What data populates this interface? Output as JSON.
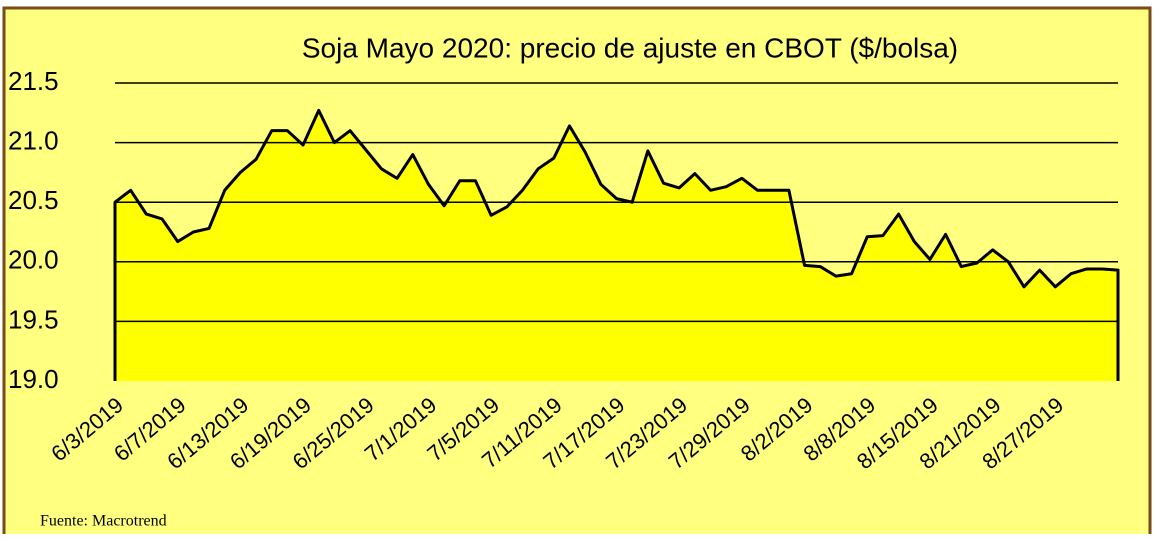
{
  "chart_data": {
    "type": "area",
    "title": "Soja Mayo 2020: precio de ajuste en CBOT ($/bolsa)",
    "source": "Fuente: Macrotrend",
    "color": "#ffff00",
    "line_color": "#000000",
    "background": "#ffff80",
    "grid": true,
    "categories": [
      "6/3/2019",
      null,
      null,
      null,
      "6/7/2019",
      null,
      null,
      null,
      "6/13/2019",
      null,
      null,
      null,
      "6/19/2019",
      null,
      null,
      null,
      "6/25/2019",
      null,
      null,
      null,
      "7/1/2019",
      null,
      null,
      null,
      "7/5/2019",
      null,
      null,
      null,
      "7/11/2019",
      null,
      null,
      null,
      "7/17/2019",
      null,
      null,
      null,
      "7/23/2019",
      null,
      null,
      null,
      "7/29/2019",
      null,
      null,
      null,
      "8/2/2019",
      null,
      null,
      null,
      "8/8/2019",
      null,
      null,
      null,
      "8/15/2019",
      null,
      null,
      null,
      "8/21/2019",
      null,
      null,
      null,
      "8/27/2019",
      null,
      null,
      null,
      null
    ],
    "values": [
      20.5,
      20.6,
      20.4,
      20.36,
      20.17,
      20.25,
      20.28,
      20.6,
      20.75,
      20.86,
      21.1,
      21.1,
      20.98,
      21.27,
      21.0,
      21.1,
      20.94,
      20.78,
      20.7,
      20.9,
      20.65,
      20.47,
      20.68,
      20.68,
      20.39,
      20.46,
      20.6,
      20.78,
      20.87,
      21.14,
      20.92,
      20.65,
      20.53,
      20.5,
      20.93,
      20.66,
      20.62,
      20.74,
      20.6,
      20.63,
      20.7,
      20.6,
      20.6,
      20.6,
      19.97,
      19.96,
      19.88,
      19.9,
      20.21,
      20.22,
      20.4,
      20.17,
      20.02,
      20.23,
      19.96,
      19.99,
      20.1,
      20.0,
      19.79,
      19.93,
      19.79,
      19.9,
      19.94,
      19.94,
      19.93
    ],
    "ylim": [
      19.0,
      21.5
    ],
    "yticks": [
      {
        "value": 19,
        "label": "19.0"
      },
      19.5,
      {
        "value": 20,
        "label": "20.0"
      },
      20.5,
      {
        "value": 21,
        "label": "21.0"
      },
      21.5
    ]
  }
}
